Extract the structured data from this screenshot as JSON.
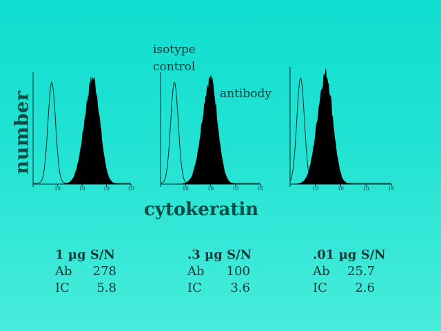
{
  "chart_data": {
    "type": "area",
    "ylabel": "number",
    "xlabel": "cytokeratin",
    "annotations": {
      "isotype_control": [
        "isotype",
        "control"
      ],
      "antibody": "antibody"
    },
    "x_axis": {
      "scale": "log",
      "ticks": [
        1,
        10,
        100,
        1000,
        10000
      ],
      "tick_label": "10"
    },
    "panels": [
      {
        "condition": "1 µg S/N",
        "stats": {
          "Ab": "278",
          "IC": "5.8"
        },
        "isotype_peak": 5.8,
        "antibody_peak": 278
      },
      {
        "condition": ".3 µg S/N",
        "stats": {
          "Ab": "100",
          "IC": "3.6"
        },
        "isotype_peak": 3.6,
        "antibody_peak": 100
      },
      {
        "condition": ".01 µg S/N",
        "stats": {
          "Ab": "25.7",
          "IC": "2.6"
        },
        "isotype_peak": 2.6,
        "antibody_peak": 25.7
      }
    ]
  },
  "stat_labels": {
    "ab": "Ab",
    "ic": "IC"
  }
}
